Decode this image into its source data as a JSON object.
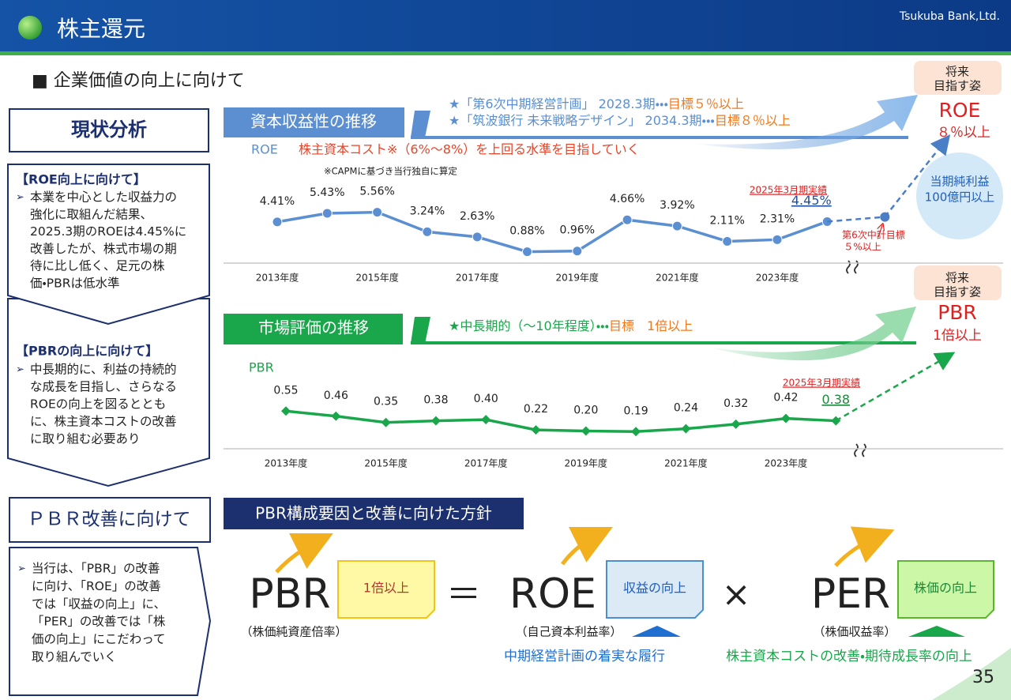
{
  "header": {
    "title": "株主還元",
    "company": "Tsukuba Bank,Ltd."
  },
  "section_title": "■ 企業価値の向上に向けて",
  "analysis": {
    "title": "現状分析",
    "roe": {
      "heading": "【ROE向上に向けて】",
      "lines": [
        "本業を中心とした収益力の",
        "強化に取組んだ結果、",
        "2025.3期のROEは4.45%に",
        "改善したが、株式市場の期",
        "待に比し低く、足元の株",
        "価・PBRは低水準"
      ]
    },
    "pbr": {
      "heading": "【PBRの向上に向けて】",
      "lines": [
        "中長期的に、利益の持続的",
        "な成長を目指し、さらなる",
        "ROEの向上を図るととも",
        "に、株主資本コストの改善",
        "に取り組む必要あり"
      ]
    }
  },
  "improvement": {
    "title": "ＰＢＲ改善に向けて",
    "lines": [
      "当行は、「PBR」の改善",
      "に向け、「ROE」の改善",
      "では「収益の向上」に、",
      "「PER」の改善では「株",
      "価の向上」にこだわって",
      "取り組んでいく"
    ]
  },
  "chart_data": [
    {
      "type": "line",
      "title": "資本収益性の推移",
      "targets": [
        {
          "text": "★「第6次中期経営計画」 2028.3期・・・",
          "goal": "目標５％以上"
        },
        {
          "text": "★「筑波銀行 未来戦略デザイン」 2034.3期・・・",
          "goal": "目標８％以上"
        }
      ],
      "series_name": "ROE",
      "note": "株主資本コスト※（6%～8%）を上回る水準を目指していく",
      "footnote": "※CAPMに基づき当行独自に算定",
      "categories": [
        "2013年度",
        null,
        "2015年度",
        null,
        "2017年度",
        null,
        "2019年度",
        null,
        "2021年度",
        null,
        "2023年度",
        null
      ],
      "values": [
        4.41,
        5.43,
        5.56,
        3.24,
        2.63,
        0.88,
        0.96,
        4.66,
        3.92,
        2.11,
        2.31,
        4.45
      ],
      "value_labels": [
        "4.41%",
        "5.43%",
        "5.56%",
        "3.24%",
        "2.63%",
        "0.88%",
        "0.96%",
        "4.66%",
        "3.92%",
        "2.11%",
        "2.31%",
        "4.45%"
      ],
      "color": "#5b8fd1",
      "ylim": [
        0,
        7
      ],
      "actual_label": "2025年3月期実績",
      "target": {
        "value": 5,
        "label": [
          "第6次中計目標",
          "５%以上"
        ]
      }
    },
    {
      "type": "line",
      "title": "市場評価の推移",
      "targets": [
        {
          "text": "★中長期的（～10年程度）・・・",
          "goal": "目標　1倍以上"
        }
      ],
      "series_name": "PBR",
      "categories": [
        "2013年度",
        null,
        "2015年度",
        null,
        "2017年度",
        null,
        "2019年度",
        null,
        "2021年度",
        null,
        "2023年度",
        null
      ],
      "values": [
        0.55,
        0.46,
        0.35,
        0.38,
        0.4,
        0.22,
        0.2,
        0.19,
        0.24,
        0.32,
        0.42,
        0.38
      ],
      "value_labels": [
        "0.55",
        "0.46",
        "0.35",
        "0.38",
        "0.40",
        "0.22",
        "0.20",
        "0.19",
        "0.24",
        "0.32",
        "0.42",
        "0.38"
      ],
      "color": "#1aa64b",
      "ylim": [
        0,
        1
      ],
      "actual_label": "2025年3月期実績"
    }
  ],
  "future": [
    {
      "heading": [
        "将来",
        "目指す姿"
      ],
      "metric": "ROE",
      "goal": "８％以上",
      "extra": [
        "当期純利益",
        "100億円以上"
      ]
    },
    {
      "heading": [
        "将来",
        "目指す姿"
      ],
      "metric": "PBR",
      "goal": "1倍以上"
    }
  ],
  "formula": {
    "title": "PBR構成要因と改善に向けた方針",
    "terms": [
      {
        "name": "PBR",
        "tag": "1倍以上",
        "desc": "（株価純資産倍率）"
      },
      {
        "name": "ROE",
        "tag": "収益の向上",
        "desc": "（自己資本利益率）"
      },
      {
        "name": "PER",
        "tag": "株価の向上",
        "desc": "（株価収益率）"
      }
    ],
    "operators": [
      "＝",
      "×"
    ],
    "policies": [
      "中期経営計画の着実な履行",
      "株主資本コストの改善・期待成長率の向上"
    ]
  },
  "page_number": "35"
}
